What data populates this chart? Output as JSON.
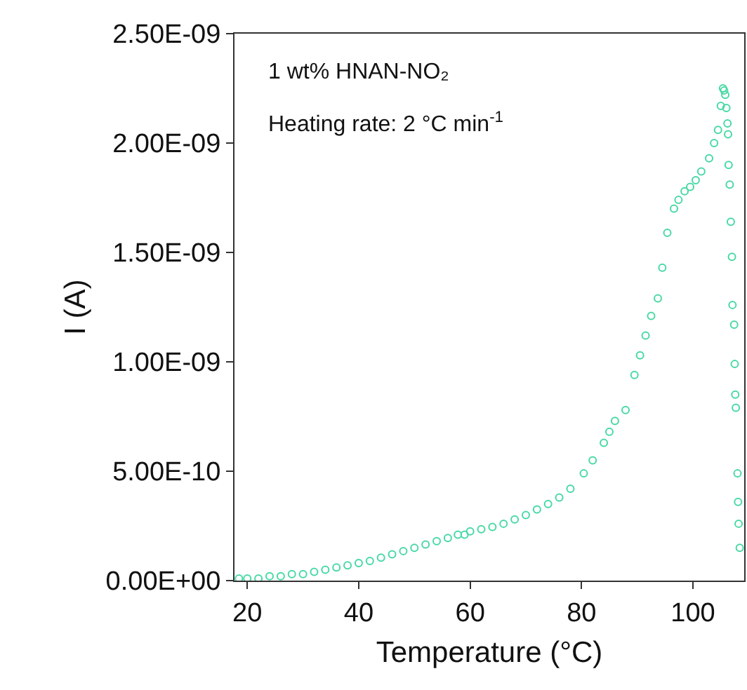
{
  "chart_data": {
    "type": "scatter",
    "xlabel": "Temperature (°C)",
    "ylabel": "I (A)",
    "annotations": [
      "1 wt% HNAN-NO₂",
      "Heating rate: 2 °C min$^{-1}$"
    ],
    "x": [
      18.5,
      20,
      22,
      24,
      26,
      28,
      30,
      32,
      34,
      36,
      38,
      40,
      42,
      44,
      46,
      48,
      50,
      52,
      54,
      56,
      57.8,
      59,
      60,
      62,
      64,
      66,
      68,
      70,
      72,
      74,
      76,
      78,
      80.4,
      82,
      84,
      85,
      86,
      87.9,
      89.5,
      90.5,
      91.5,
      92.5,
      93.7,
      94.5,
      95.4,
      96.6,
      97.4,
      98.5,
      99.5,
      100.5,
      101.5,
      102.9,
      103.8,
      104.5,
      105,
      105.4,
      105.6,
      105.8,
      106.0,
      106.2,
      106.3,
      106.4,
      106.6,
      106.8,
      107.0,
      107.1,
      107.4,
      107.5,
      107.6,
      107.7,
      108.0,
      108.1,
      108.2,
      108.4
    ],
    "series": [
      {
        "color": "#48d9a4",
        "values": [
          1e-11,
          1e-11,
          1e-11,
          2e-11,
          2e-11,
          3e-11,
          3e-11,
          4e-11,
          5e-11,
          6e-11,
          7e-11,
          8e-11,
          9e-11,
          1.05e-10,
          1.2e-10,
          1.35e-10,
          1.5e-10,
          1.65e-10,
          1.8e-10,
          1.95e-10,
          2.1e-10,
          2.1e-10,
          2.25e-10,
          2.35e-10,
          2.45e-10,
          2.6e-10,
          2.8e-10,
          3e-10,
          3.25e-10,
          3.5e-10,
          3.8e-10,
          4.2e-10,
          4.9e-10,
          5.5e-10,
          6.3e-10,
          6.8e-10,
          7.3e-10,
          7.8e-10,
          9.4e-10,
          1.03e-09,
          1.12e-09,
          1.21e-09,
          1.29e-09,
          1.43e-09,
          1.59e-09,
          1.7e-09,
          1.74e-09,
          1.78e-09,
          1.8e-09,
          1.83e-09,
          1.87e-09,
          1.93e-09,
          2e-09,
          2.06e-09,
          2.17e-09,
          2.25e-09,
          2.24e-09,
          2.22e-09,
          2.16e-09,
          2.09e-09,
          2.04e-09,
          1.9e-09,
          1.81e-09,
          1.64e-09,
          1.48e-09,
          1.26e-09,
          1.17e-09,
          9.9e-10,
          8.5e-10,
          7.9e-10,
          4.9e-10,
          3.6e-10,
          2.6e-10,
          1.5e-10
        ]
      }
    ],
    "marker": "circle",
    "xlim": [
      17.7,
      109.2
    ],
    "xticks": [
      20,
      40,
      60,
      80,
      100
    ],
    "ylim": [
      0,
      2.5e-09
    ],
    "yticks": [
      {
        "value": 0,
        "label": "0.00E+00"
      },
      {
        "value": 5e-10,
        "label": "5.00E-10"
      },
      {
        "value": 1e-09,
        "label": "1.00E-09"
      },
      {
        "value": 1.5e-09,
        "label": "1.50E-09"
      },
      {
        "value": 2e-09,
        "label": "2.00E-09"
      },
      {
        "value": 2.5e-09,
        "label": "2.50E-09"
      }
    ]
  }
}
